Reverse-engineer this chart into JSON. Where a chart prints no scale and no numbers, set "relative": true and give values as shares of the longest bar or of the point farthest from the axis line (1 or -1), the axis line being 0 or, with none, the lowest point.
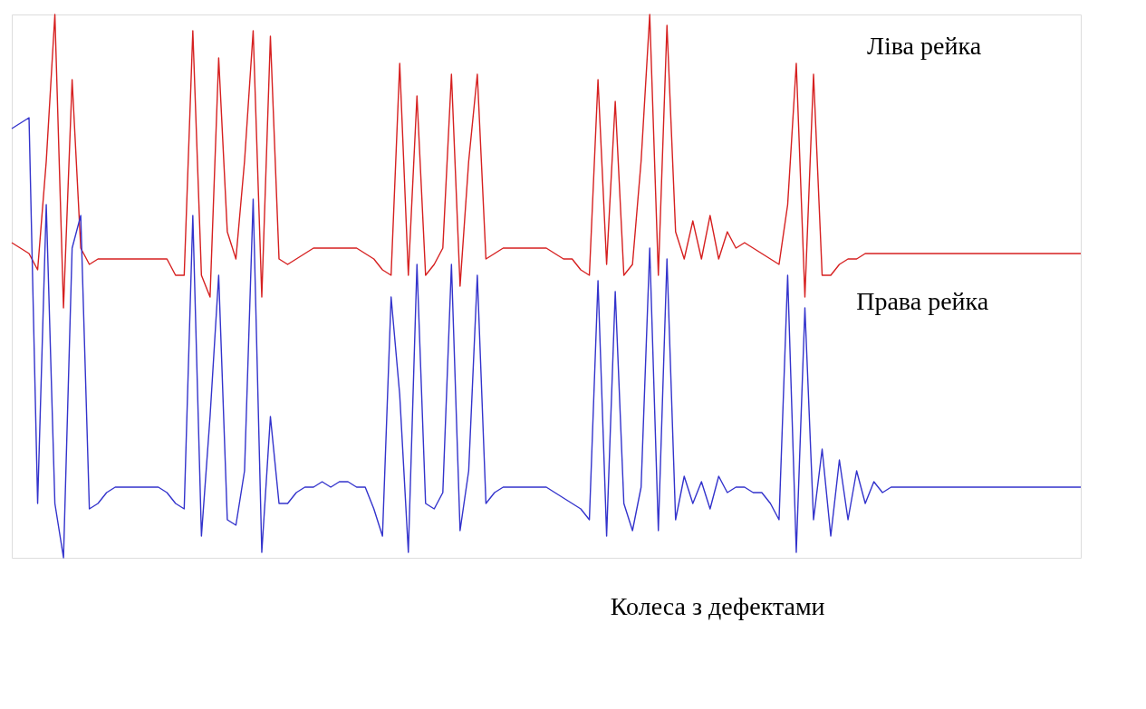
{
  "chart_data": {
    "type": "line",
    "relative": true,
    "marker": "none",
    "line_style": "solid",
    "categories": [
      null,
      null,
      null,
      null,
      null,
      null,
      null,
      null,
      null,
      null,
      null,
      null,
      null,
      null,
      null,
      null,
      null,
      null,
      null,
      null,
      null,
      null,
      null,
      null,
      null,
      null,
      null,
      null,
      null,
      null,
      null,
      null,
      null,
      null,
      null,
      null,
      null,
      null,
      null,
      null,
      null,
      null,
      null,
      null,
      null,
      null,
      null,
      null,
      null,
      null,
      null,
      null,
      null,
      null,
      null,
      null,
      null,
      null,
      null,
      null,
      null,
      null,
      null,
      null,
      null,
      null,
      null,
      null,
      null,
      null,
      null,
      null,
      null,
      null,
      null,
      null,
      null,
      null,
      null,
      null,
      null,
      null,
      null,
      null,
      null,
      null,
      null,
      null,
      null,
      null,
      null,
      null,
      null,
      null,
      null,
      null,
      null,
      null,
      null,
      null,
      null,
      null,
      null,
      null,
      null,
      null,
      null,
      null,
      null,
      null,
      null,
      null,
      null,
      null,
      null,
      null,
      null,
      null,
      null,
      null,
      null,
      null,
      null,
      null,
      null
    ],
    "series": [
      {
        "color": "#d62020",
        "values": [
          0.58,
          0.57,
          0.56,
          0.53,
          0.73,
          1.0,
          0.46,
          0.88,
          0.57,
          0.54,
          0.55,
          0.55,
          0.55,
          0.55,
          0.55,
          0.55,
          0.55,
          0.55,
          0.55,
          0.52,
          0.52,
          0.97,
          0.52,
          0.48,
          0.92,
          0.6,
          0.55,
          0.73,
          0.97,
          0.48,
          0.96,
          0.55,
          0.54,
          0.55,
          0.56,
          0.57,
          0.57,
          0.57,
          0.57,
          0.57,
          0.57,
          0.56,
          0.55,
          0.53,
          0.52,
          0.91,
          0.52,
          0.85,
          0.52,
          0.54,
          0.57,
          0.89,
          0.5,
          0.73,
          0.89,
          0.55,
          0.56,
          0.57,
          0.57,
          0.57,
          0.57,
          0.57,
          0.57,
          0.56,
          0.55,
          0.55,
          0.53,
          0.52,
          0.88,
          0.54,
          0.84,
          0.52,
          0.54,
          0.73,
          1.0,
          0.52,
          0.98,
          0.6,
          0.55,
          0.62,
          0.55,
          0.63,
          0.55,
          0.6,
          0.57,
          0.58,
          0.57,
          0.56,
          0.55,
          0.54,
          0.65,
          0.91,
          0.48,
          0.89,
          0.52,
          0.52,
          0.54,
          0.55,
          0.55,
          0.56,
          0.56,
          0.56,
          0.56,
          0.56,
          0.56,
          0.56,
          0.56,
          0.56,
          0.56,
          0.56,
          0.56,
          0.56,
          0.56,
          0.56,
          0.56,
          0.56,
          0.56,
          0.56,
          0.56,
          0.56,
          0.56,
          0.56,
          0.56,
          0.56,
          0.56
        ]
      },
      {
        "color": "#3333cc",
        "values": [
          0.79,
          0.8,
          0.81,
          0.1,
          0.65,
          0.1,
          0.0,
          0.57,
          0.63,
          0.09,
          0.1,
          0.12,
          0.13,
          0.13,
          0.13,
          0.13,
          0.13,
          0.13,
          0.12,
          0.1,
          0.09,
          0.63,
          0.04,
          0.26,
          0.52,
          0.07,
          0.06,
          0.16,
          0.66,
          0.01,
          0.26,
          0.1,
          0.1,
          0.12,
          0.13,
          0.13,
          0.14,
          0.13,
          0.14,
          0.14,
          0.13,
          0.13,
          0.09,
          0.04,
          0.48,
          0.3,
          0.01,
          0.54,
          0.1,
          0.09,
          0.12,
          0.54,
          0.05,
          0.16,
          0.52,
          0.1,
          0.12,
          0.13,
          0.13,
          0.13,
          0.13,
          0.13,
          0.13,
          0.12,
          0.11,
          0.1,
          0.09,
          0.07,
          0.51,
          0.04,
          0.49,
          0.1,
          0.05,
          0.13,
          0.57,
          0.05,
          0.55,
          0.07,
          0.15,
          0.1,
          0.14,
          0.09,
          0.15,
          0.12,
          0.13,
          0.13,
          0.12,
          0.12,
          0.1,
          0.07,
          0.52,
          0.01,
          0.46,
          0.07,
          0.2,
          0.04,
          0.18,
          0.07,
          0.16,
          0.1,
          0.14,
          0.12,
          0.13,
          0.13,
          0.13,
          0.13,
          0.13,
          0.13,
          0.13,
          0.13,
          0.13,
          0.13,
          0.13,
          0.13,
          0.13,
          0.13,
          0.13,
          0.13,
          0.13,
          0.13,
          0.13,
          0.13,
          0.13,
          0.13,
          0.13
        ]
      }
    ],
    "annotations": [
      "Ліва рейка",
      "Права рейка",
      "Колеса з дефектами"
    ]
  }
}
